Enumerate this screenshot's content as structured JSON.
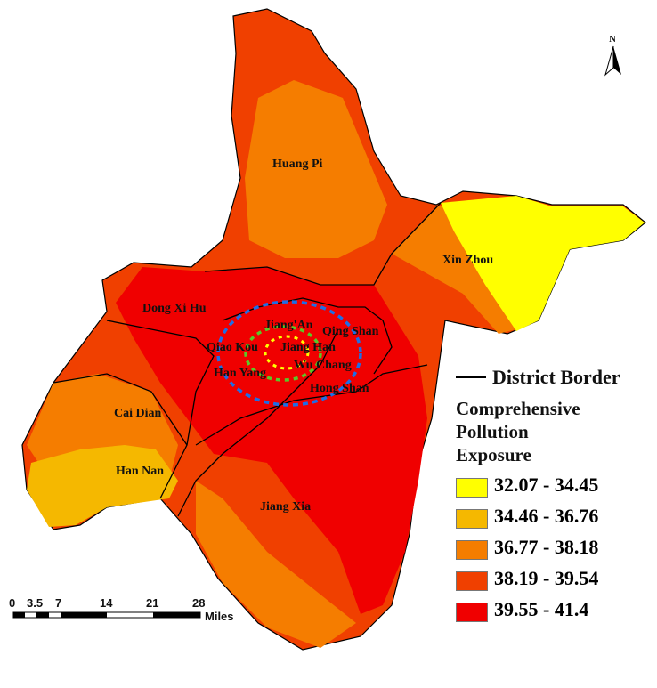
{
  "map": {
    "districts": [
      "Huang Pi",
      "Xin Zhou",
      "Dong Xi Hu",
      "Jiang'An",
      "Qing Shan",
      "Qiao Kou",
      "Jiang Han",
      "Han Yang",
      "Wu Chang",
      "Hong Shan",
      "Cai Dian",
      "Han Nan",
      "Jiang Xia"
    ],
    "north_label": "N"
  },
  "legend": {
    "border_label": "District Border",
    "title_lines": [
      "Comprehensive",
      "Pollution",
      "Exposure"
    ],
    "classes": [
      {
        "range": "32.07 - 34.45",
        "color": "#ffff00"
      },
      {
        "range": "34.46 - 36.76",
        "color": "#f5b800"
      },
      {
        "range": "36.77 - 38.18",
        "color": "#f57d00"
      },
      {
        "range": "38.19 - 39.54",
        "color": "#f04000"
      },
      {
        "range": "39.55 - 41.4",
        "color": "#f00000"
      }
    ]
  },
  "scalebar": {
    "ticks": [
      "0",
      "3.5",
      "7",
      "14",
      "21",
      "28"
    ],
    "unit": "Miles"
  }
}
